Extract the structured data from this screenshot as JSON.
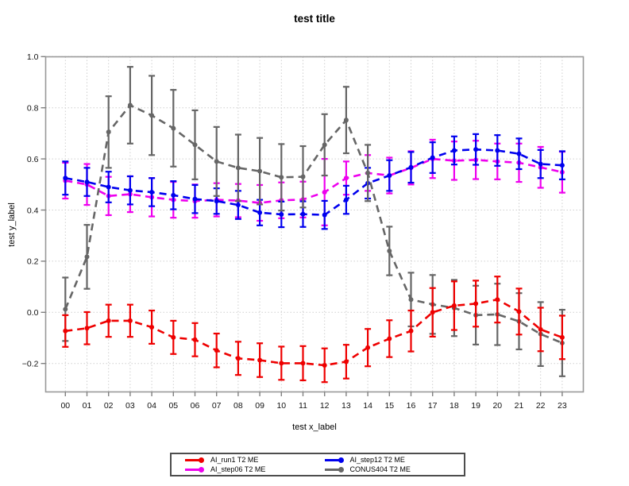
{
  "page": {
    "background": "#ffffff"
  },
  "chart_data": {
    "type": "line",
    "title": "test title",
    "xlabel": "test x_label",
    "ylabel": "test y_label",
    "x_labels": [
      "00",
      "01",
      "02",
      "03",
      "04",
      "05",
      "06",
      "07",
      "08",
      "09",
      "10",
      "11",
      "12",
      "13",
      "14",
      "15",
      "16",
      "17",
      "18",
      "19",
      "20",
      "21",
      "22",
      "23"
    ],
    "y_tick_values": [
      1.0,
      0.8,
      0.6,
      0.4,
      0.2,
      0.0,
      -0.2
    ],
    "y_tick_labels": [
      "1.0",
      "0.8",
      "0.6",
      "0.4",
      "0.2",
      "0.0",
      "−0.2"
    ],
    "ylim": [
      -0.317,
      1.0
    ],
    "grid": true,
    "legend_position": "bottom-center",
    "style": {
      "line_dash": "dashed",
      "marker": "circle",
      "error_bars": true
    },
    "colors": {
      "grid": "#cfcfcf",
      "frame": "#999999",
      "tick": "#808080",
      "text": "#111111"
    },
    "series": [
      {
        "name": "AI_run1 T2 ME",
        "color": "#ee0000",
        "values": [
          -0.073,
          -0.062,
          -0.033,
          -0.033,
          -0.058,
          -0.098,
          -0.107,
          -0.149,
          -0.18,
          -0.187,
          -0.199,
          -0.199,
          -0.207,
          -0.193,
          -0.138,
          -0.103,
          -0.073,
          0.0,
          0.026,
          0.034,
          0.05,
          0.003,
          -0.067,
          -0.098
        ],
        "errors": [
          0.062,
          0.063,
          0.063,
          0.063,
          0.065,
          0.065,
          0.065,
          0.066,
          0.065,
          0.066,
          0.065,
          0.067,
          0.066,
          0.066,
          0.073,
          0.072,
          0.08,
          0.095,
          0.095,
          0.09,
          0.09,
          0.09,
          0.085,
          0.085
        ]
      },
      {
        "name": "AI_step06 T2 ME",
        "color": "#ee00ee",
        "values": [
          0.515,
          0.5,
          0.455,
          0.462,
          0.45,
          0.44,
          0.435,
          0.44,
          0.437,
          0.428,
          0.438,
          0.441,
          0.47,
          0.525,
          0.545,
          0.535,
          0.565,
          0.6,
          0.593,
          0.596,
          0.59,
          0.585,
          0.567,
          0.548
        ],
        "errors": [
          0.07,
          0.08,
          0.075,
          0.07,
          0.075,
          0.07,
          0.065,
          0.065,
          0.065,
          0.07,
          0.07,
          0.07,
          0.13,
          0.065,
          0.07,
          0.07,
          0.065,
          0.075,
          0.075,
          0.075,
          0.07,
          0.075,
          0.08,
          0.08
        ]
      },
      {
        "name": "AI_step12 T2 ME",
        "color": "#0000ee",
        "values": [
          0.525,
          0.51,
          0.49,
          0.477,
          0.47,
          0.458,
          0.443,
          0.435,
          0.42,
          0.39,
          0.383,
          0.384,
          0.381,
          0.44,
          0.505,
          0.535,
          0.567,
          0.605,
          0.633,
          0.637,
          0.633,
          0.62,
          0.58,
          0.575
        ],
        "errors": [
          0.065,
          0.055,
          0.06,
          0.055,
          0.055,
          0.055,
          0.055,
          0.05,
          0.055,
          0.05,
          0.05,
          0.05,
          0.055,
          0.055,
          0.06,
          0.06,
          0.06,
          0.06,
          0.055,
          0.06,
          0.06,
          0.06,
          0.055,
          0.055
        ]
      },
      {
        "name": "CONUS404 T2 ME",
        "color": "#666666",
        "values": [
          0.012,
          0.217,
          0.705,
          0.81,
          0.77,
          0.72,
          0.655,
          0.59,
          0.565,
          0.552,
          0.528,
          0.53,
          0.655,
          0.752,
          0.545,
          0.24,
          0.05,
          0.031,
          0.017,
          -0.011,
          -0.008,
          -0.035,
          -0.085,
          -0.12
        ],
        "errors": [
          0.124,
          0.125,
          0.14,
          0.15,
          0.155,
          0.15,
          0.135,
          0.135,
          0.13,
          0.13,
          0.13,
          0.12,
          0.12,
          0.13,
          0.11,
          0.095,
          0.105,
          0.115,
          0.11,
          0.115,
          0.12,
          0.11,
          0.125,
          0.13
        ]
      }
    ],
    "draw_order": [
      1,
      2,
      3,
      0
    ]
  }
}
